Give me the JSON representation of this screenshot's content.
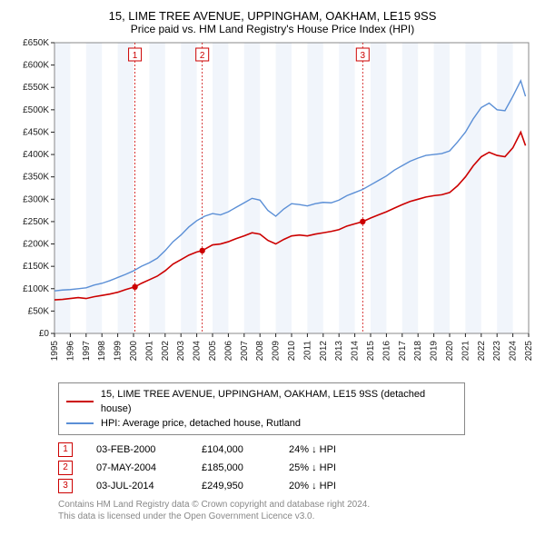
{
  "title_line1": "15, LIME TREE AVENUE, UPPINGHAM, OAKHAM, LE15 9SS",
  "title_line2": "Price paid vs. HM Land Registry's House Price Index (HPI)",
  "chart": {
    "type": "line",
    "background_color": "#ffffff",
    "plot_border_color": "#888888",
    "grid": false,
    "x": {
      "min": 1995,
      "max": 2025,
      "ticks": [
        1995,
        1996,
        1997,
        1998,
        1999,
        2000,
        2001,
        2002,
        2003,
        2004,
        2005,
        2006,
        2007,
        2008,
        2009,
        2010,
        2011,
        2012,
        2013,
        2014,
        2015,
        2016,
        2017,
        2018,
        2019,
        2020,
        2021,
        2022,
        2023,
        2024,
        2025
      ]
    },
    "y": {
      "min": 0,
      "max": 650000,
      "tick_step": 50000,
      "tick_prefix": "£",
      "tick_suffix": "K",
      "tick_divisor": 1000
    },
    "alt_bands": {
      "color": "#f1f5fb",
      "years": [
        1995,
        1997,
        1999,
        2001,
        2003,
        2005,
        2007,
        2009,
        2011,
        2013,
        2015,
        2017,
        2019,
        2021,
        2023
      ]
    },
    "series": [
      {
        "name": "price_paid",
        "label": "15, LIME TREE AVENUE, UPPINGHAM, OAKHAM, LE15 9SS (detached house)",
        "color": "#cc0000",
        "line_width": 1.6,
        "data": [
          [
            1995.0,
            75000
          ],
          [
            1995.5,
            76000
          ],
          [
            1996.0,
            78000
          ],
          [
            1996.5,
            80000
          ],
          [
            1997.0,
            78000
          ],
          [
            1997.5,
            82000
          ],
          [
            1998.0,
            85000
          ],
          [
            1998.5,
            88000
          ],
          [
            1999.0,
            92000
          ],
          [
            1999.5,
            98000
          ],
          [
            2000.09,
            104000
          ],
          [
            2000.5,
            112000
          ],
          [
            2001.0,
            120000
          ],
          [
            2001.5,
            128000
          ],
          [
            2002.0,
            140000
          ],
          [
            2002.5,
            155000
          ],
          [
            2003.0,
            165000
          ],
          [
            2003.5,
            175000
          ],
          [
            2004.0,
            182000
          ],
          [
            2004.35,
            185000
          ],
          [
            2004.7,
            192000
          ],
          [
            2005.0,
            198000
          ],
          [
            2005.5,
            200000
          ],
          [
            2006.0,
            205000
          ],
          [
            2006.5,
            212000
          ],
          [
            2007.0,
            218000
          ],
          [
            2007.5,
            225000
          ],
          [
            2008.0,
            222000
          ],
          [
            2008.5,
            208000
          ],
          [
            2009.0,
            200000
          ],
          [
            2009.5,
            210000
          ],
          [
            2010.0,
            218000
          ],
          [
            2010.5,
            220000
          ],
          [
            2011.0,
            218000
          ],
          [
            2011.5,
            222000
          ],
          [
            2012.0,
            225000
          ],
          [
            2012.5,
            228000
          ],
          [
            2013.0,
            232000
          ],
          [
            2013.5,
            240000
          ],
          [
            2014.0,
            245000
          ],
          [
            2014.5,
            249950
          ],
          [
            2015.0,
            258000
          ],
          [
            2015.5,
            265000
          ],
          [
            2016.0,
            272000
          ],
          [
            2016.5,
            280000
          ],
          [
            2017.0,
            288000
          ],
          [
            2017.5,
            295000
          ],
          [
            2018.0,
            300000
          ],
          [
            2018.5,
            305000
          ],
          [
            2019.0,
            308000
          ],
          [
            2019.5,
            310000
          ],
          [
            2020.0,
            315000
          ],
          [
            2020.5,
            330000
          ],
          [
            2021.0,
            350000
          ],
          [
            2021.5,
            375000
          ],
          [
            2022.0,
            395000
          ],
          [
            2022.5,
            405000
          ],
          [
            2023.0,
            398000
          ],
          [
            2023.5,
            395000
          ],
          [
            2024.0,
            415000
          ],
          [
            2024.5,
            450000
          ],
          [
            2024.8,
            420000
          ]
        ]
      },
      {
        "name": "hpi",
        "label": "HPI: Average price, detached house, Rutland",
        "color": "#5b8fd6",
        "line_width": 1.4,
        "data": [
          [
            1995.0,
            95000
          ],
          [
            1995.5,
            97000
          ],
          [
            1996.0,
            98000
          ],
          [
            1996.5,
            100000
          ],
          [
            1997.0,
            102000
          ],
          [
            1997.5,
            108000
          ],
          [
            1998.0,
            112000
          ],
          [
            1998.5,
            118000
          ],
          [
            1999.0,
            125000
          ],
          [
            1999.5,
            132000
          ],
          [
            2000.0,
            140000
          ],
          [
            2000.5,
            150000
          ],
          [
            2001.0,
            158000
          ],
          [
            2001.5,
            168000
          ],
          [
            2002.0,
            185000
          ],
          [
            2002.5,
            205000
          ],
          [
            2003.0,
            220000
          ],
          [
            2003.5,
            238000
          ],
          [
            2004.0,
            252000
          ],
          [
            2004.5,
            262000
          ],
          [
            2005.0,
            268000
          ],
          [
            2005.5,
            265000
          ],
          [
            2006.0,
            272000
          ],
          [
            2006.5,
            282000
          ],
          [
            2007.0,
            292000
          ],
          [
            2007.5,
            302000
          ],
          [
            2008.0,
            298000
          ],
          [
            2008.5,
            275000
          ],
          [
            2009.0,
            262000
          ],
          [
            2009.5,
            278000
          ],
          [
            2010.0,
            290000
          ],
          [
            2010.5,
            288000
          ],
          [
            2011.0,
            285000
          ],
          [
            2011.5,
            290000
          ],
          [
            2012.0,
            293000
          ],
          [
            2012.5,
            292000
          ],
          [
            2013.0,
            298000
          ],
          [
            2013.5,
            308000
          ],
          [
            2014.0,
            315000
          ],
          [
            2014.5,
            322000
          ],
          [
            2015.0,
            332000
          ],
          [
            2015.5,
            342000
          ],
          [
            2016.0,
            352000
          ],
          [
            2016.5,
            365000
          ],
          [
            2017.0,
            375000
          ],
          [
            2017.5,
            385000
          ],
          [
            2018.0,
            392000
          ],
          [
            2018.5,
            398000
          ],
          [
            2019.0,
            400000
          ],
          [
            2019.5,
            402000
          ],
          [
            2020.0,
            408000
          ],
          [
            2020.5,
            428000
          ],
          [
            2021.0,
            450000
          ],
          [
            2021.5,
            480000
          ],
          [
            2022.0,
            505000
          ],
          [
            2022.5,
            515000
          ],
          [
            2023.0,
            500000
          ],
          [
            2023.5,
            498000
          ],
          [
            2024.0,
            530000
          ],
          [
            2024.5,
            565000
          ],
          [
            2024.8,
            530000
          ]
        ]
      }
    ],
    "markers": [
      {
        "n": "1",
        "year": 2000.09
      },
      {
        "n": "2",
        "year": 2004.35
      },
      {
        "n": "3",
        "year": 2014.5
      }
    ],
    "sale_points": [
      {
        "year": 2000.09,
        "price": 104000
      },
      {
        "year": 2004.35,
        "price": 185000
      },
      {
        "year": 2014.5,
        "price": 249950
      }
    ]
  },
  "legend": [
    {
      "color": "#cc0000",
      "text": "15, LIME TREE AVENUE, UPPINGHAM, OAKHAM, LE15 9SS (detached house)"
    },
    {
      "color": "#5b8fd6",
      "text": "HPI: Average price, detached house, Rutland"
    }
  ],
  "sales": [
    {
      "n": "1",
      "date": "03-FEB-2000",
      "price": "£104,000",
      "diff": "24% ↓ HPI"
    },
    {
      "n": "2",
      "date": "07-MAY-2004",
      "price": "£185,000",
      "diff": "25% ↓ HPI"
    },
    {
      "n": "3",
      "date": "03-JUL-2014",
      "price": "£249,950",
      "diff": "20% ↓ HPI"
    }
  ],
  "footer_line1": "Contains HM Land Registry data © Crown copyright and database right 2024.",
  "footer_line2": "This data is licensed under the Open Government Licence v3.0."
}
